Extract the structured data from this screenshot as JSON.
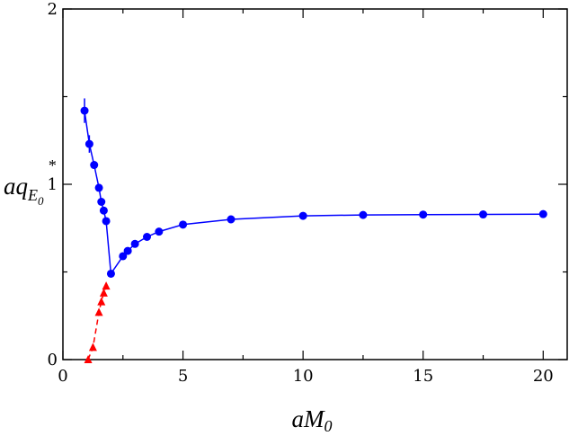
{
  "chart_data": {
    "type": "scatter",
    "xlim": [
      0,
      21
    ],
    "ylim": [
      0,
      2
    ],
    "x_ticks": [
      "0",
      "5",
      "10",
      "15",
      "20"
    ],
    "y_ticks": [
      "0",
      "1",
      "2"
    ],
    "xlabel": "aM",
    "xlabel_sub": "0",
    "ylabel": "aq",
    "ylabel_sup": "*",
    "ylabel_sub": "E",
    "ylabel_subsub": "0",
    "grid": false,
    "series": [
      {
        "marker": "circle",
        "color": "#0000ff",
        "line_style": "solid",
        "x": [
          0.9,
          1.1,
          1.3,
          1.5,
          1.6,
          1.7,
          1.8,
          2.0,
          2.5,
          2.7,
          3.0,
          3.5,
          4.0,
          5.0,
          7.0,
          10.0,
          12.5,
          15.0,
          17.5,
          20.0
        ],
        "y": [
          1.42,
          1.23,
          1.11,
          0.98,
          0.9,
          0.85,
          0.79,
          0.49,
          0.59,
          0.62,
          0.66,
          0.7,
          0.73,
          0.77,
          0.8,
          0.82,
          0.825,
          0.827,
          0.828,
          0.83
        ],
        "y_err": [
          0.07,
          0.05,
          0.02,
          0.01,
          0.01,
          0.01,
          0.01,
          0.01,
          0.01,
          0.01,
          0.01,
          0.01,
          0.01,
          0.01,
          0.01,
          0.01,
          0.01,
          0.01,
          0.01,
          0.01
        ]
      },
      {
        "marker": "triangle",
        "color": "#ff0000",
        "line_style": "dashed",
        "x": [
          1.05,
          1.25,
          1.5,
          1.6,
          1.7,
          1.8
        ],
        "y": [
          0.0,
          0.07,
          0.27,
          0.33,
          0.38,
          0.42
        ]
      }
    ]
  }
}
